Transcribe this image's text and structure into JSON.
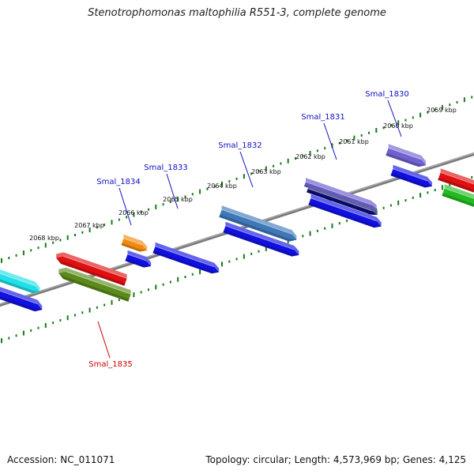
{
  "title": "Stenotrophomonas maltophilia R551-3, complete genome",
  "footer": {
    "accession": "Accession: NC_011071",
    "summary": "Topology: circular; Length: 4,573,969 bp; Genes: 4,125"
  },
  "colors": {
    "backbone": "#7a7a7a",
    "tick": "#1a7a1a",
    "forward_label": "#1010c0",
    "reverse_label": "#cc0000"
  },
  "kbp_ticks": [
    "2059 kbp",
    "2060 kbp",
    "2061 kbp",
    "2062 kbp",
    "2063 kbp",
    "2064 kbp",
    "2065 kbp",
    "2066 kbp",
    "2067 kbp",
    "2068 kbp"
  ],
  "gene_labels": [
    {
      "name": "Smal_1830",
      "strand": "forward"
    },
    {
      "name": "Smal_1831",
      "strand": "forward"
    },
    {
      "name": "Smal_1832",
      "strand": "forward"
    },
    {
      "name": "Smal_1833",
      "strand": "forward"
    },
    {
      "name": "Smal_1834",
      "strand": "forward"
    },
    {
      "name": "Smal_1835",
      "strand": "reverse"
    }
  ],
  "features": [
    {
      "id": "f-cyan",
      "color": "#22e0e8",
      "strand": "forward"
    },
    {
      "id": "f-blue-left",
      "color": "#1010e0",
      "strand": "forward"
    },
    {
      "id": "f-orange",
      "color": "#f08a10",
      "strand": "forward"
    },
    {
      "id": "f-blue-1834",
      "color": "#1010e0",
      "strand": "forward"
    },
    {
      "id": "f-blue-1833",
      "color": "#1010e0",
      "strand": "forward"
    },
    {
      "id": "f-steel",
      "color": "#3f78b8",
      "strand": "forward"
    },
    {
      "id": "f-blue-1832",
      "color": "#1010e0",
      "strand": "forward"
    },
    {
      "id": "f-purple-1831",
      "color": "#6655cc",
      "strand": "forward"
    },
    {
      "id": "f-navy-1831",
      "color": "#0a0a70",
      "strand": "forward"
    },
    {
      "id": "f-blue-1831",
      "color": "#1010e0",
      "strand": "forward"
    },
    {
      "id": "f-purple-1830",
      "color": "#7060d0",
      "strand": "forward"
    },
    {
      "id": "f-blue-1830",
      "color": "#1010e0",
      "strand": "forward"
    },
    {
      "id": "f-red-right",
      "color": "#e01010",
      "strand": "forward"
    },
    {
      "id": "f-green-right",
      "color": "#22bb22",
      "strand": "forward"
    },
    {
      "id": "f-red-1835",
      "color": "#e01010",
      "strand": "reverse"
    },
    {
      "id": "f-olive-1835",
      "color": "#5a8a1a",
      "strand": "reverse"
    }
  ]
}
